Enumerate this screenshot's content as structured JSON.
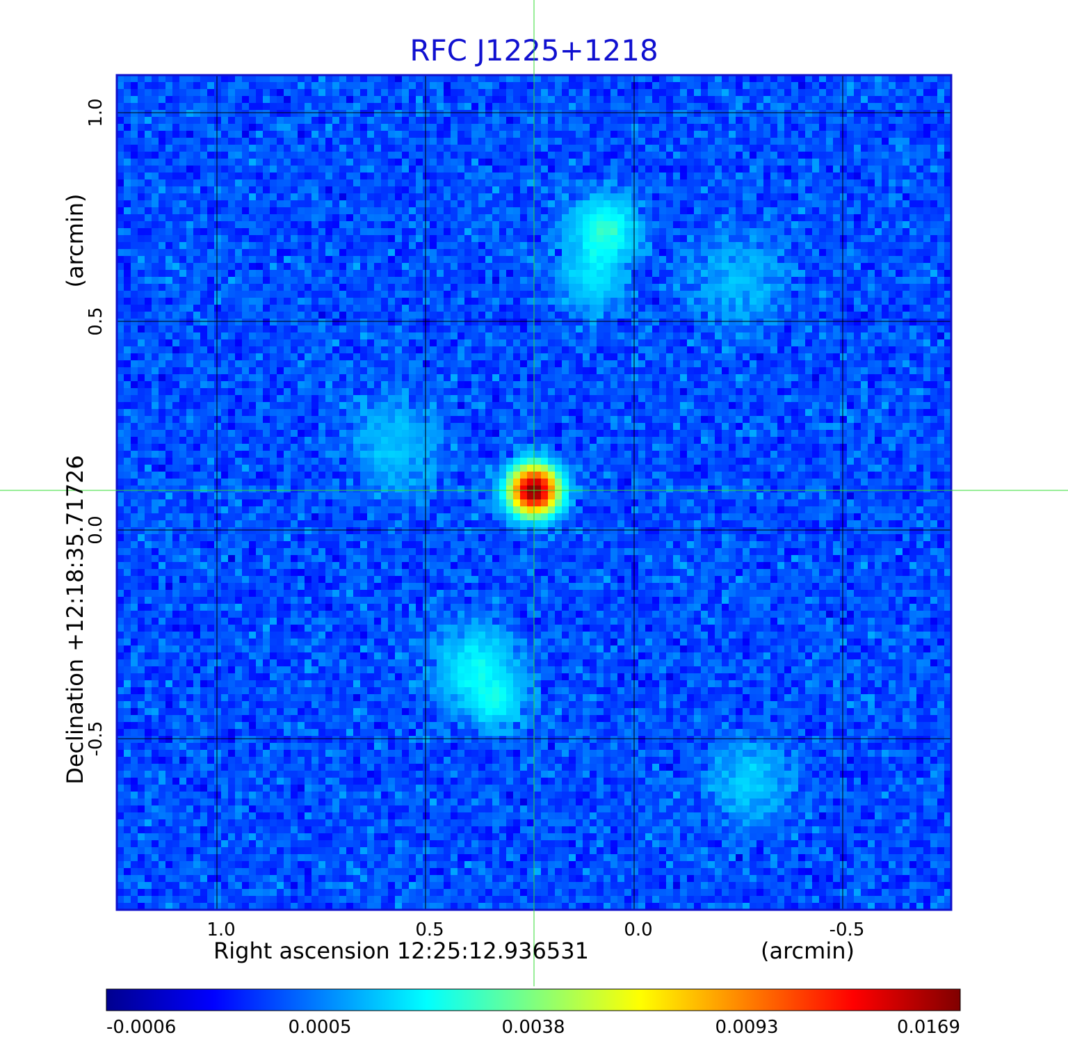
{
  "chart_data": {
    "type": "heatmap",
    "title": "RFC J1225+1218",
    "xlabel": "Right ascension  12:25:12.936531",
    "xunit": "(arcmin)",
    "ylabel": "Declination  +12:18:35.71726",
    "yunit": "(arcmin)",
    "xlim": [
      1.24,
      -0.76
    ],
    "ylim": [
      -0.91,
      1.09
    ],
    "x_ticks": [
      "1.0",
      "0.5",
      "0.0",
      "-0.5"
    ],
    "x_tick_values": [
      1.0,
      0.5,
      0.0,
      -0.5
    ],
    "y_ticks": [
      "1.0",
      "0.5",
      "0.0",
      "-0.5"
    ],
    "y_tick_values": [
      1.0,
      0.5,
      0.0,
      -0.5
    ],
    "grid": true,
    "crosshair": {
      "x": 0.24,
      "y": 0.095,
      "color": "#33dd33"
    },
    "colormap": "jet",
    "colorbar_ticks": [
      "-0.0006",
      "0.0005",
      "0.0038",
      "0.0093",
      "0.0169"
    ],
    "colorbar_range": [
      -0.0006,
      0.0169
    ],
    "sources": [
      {
        "x": 0.24,
        "y": 0.095,
        "peak": 0.0169,
        "width_arcmin": 0.035
      },
      {
        "x": 0.07,
        "y": 0.72,
        "peak": 0.0022,
        "width_arcmin": 0.05
      },
      {
        "x": 0.1,
        "y": 0.6,
        "peak": 0.0012,
        "width_arcmin": 0.05
      },
      {
        "x": 0.38,
        "y": -0.33,
        "peak": 0.0016,
        "width_arcmin": 0.06
      },
      {
        "x": 0.33,
        "y": -0.41,
        "peak": 0.0014,
        "width_arcmin": 0.04
      },
      {
        "x": 0.57,
        "y": 0.2,
        "peak": 0.0008,
        "width_arcmin": 0.07
      },
      {
        "x": -0.28,
        "y": -0.6,
        "peak": 0.0009,
        "width_arcmin": 0.06
      },
      {
        "x": -0.25,
        "y": 0.6,
        "peak": 0.0007,
        "width_arcmin": 0.07
      }
    ],
    "noise_level": 0.00025,
    "background": 0.0001
  }
}
